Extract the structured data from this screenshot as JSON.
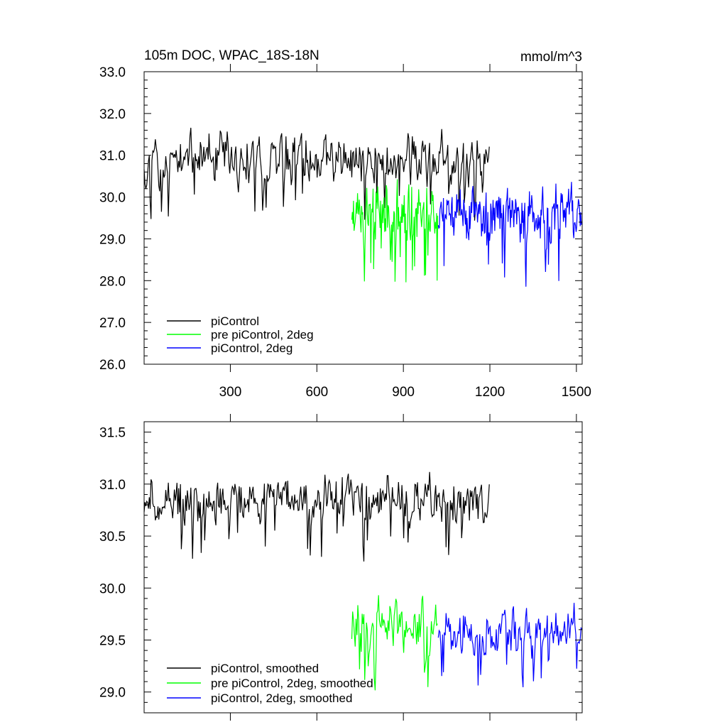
{
  "chart_data": [
    {
      "type": "line",
      "title_left": "105m DOC, WPAC_18S-18N",
      "title_right": "mmol/m^3",
      "xlabel": "",
      "ylabel": "",
      "xlim": [
        1,
        1520
      ],
      "ylim": [
        26.0,
        33.0
      ],
      "xticks": [
        300,
        600,
        900,
        1200,
        1500
      ],
      "xtick_labels": [
        "300",
        "600",
        "900",
        "1200",
        "1500"
      ],
      "yticks": [
        26.0,
        27.0,
        28.0,
        29.0,
        30.0,
        31.0,
        32.0,
        33.0
      ],
      "ytick_labels": [
        "26.0",
        "27.0",
        "28.0",
        "29.0",
        "30.0",
        "31.0",
        "32.0",
        "33.0"
      ],
      "legend_position": "bottom-left",
      "series": [
        {
          "name": "piControl",
          "color": "#000000",
          "x_range": [
            1,
            1200
          ],
          "step": 3,
          "mean": 30.85,
          "amp": 1.05,
          "min": 28.6,
          "max": 32.3,
          "seed": 11
        },
        {
          "name": "pre piControl, 2deg",
          "color": "#00ff00",
          "x_range": [
            721,
            1020
          ],
          "step": 2,
          "mean": 29.7,
          "amp": 1.25,
          "min": 26.8,
          "max": 31.2,
          "seed": 23
        },
        {
          "name": "piControl, 2deg",
          "color": "#0000ff",
          "x_range": [
            1021,
            1520
          ],
          "step": 2,
          "mean": 29.6,
          "amp": 1.1,
          "min": 27.1,
          "max": 31.1,
          "seed": 37
        }
      ]
    },
    {
      "type": "line",
      "xlabel": "",
      "ylabel": "",
      "xlim": [
        1,
        1520
      ],
      "ylim": [
        28.8,
        31.6
      ],
      "xticks": [
        300,
        600,
        900,
        1200,
        1500
      ],
      "yticks": [
        29.0,
        29.5,
        30.0,
        30.5,
        31.0,
        31.5
      ],
      "ytick_labels": [
        "29.0",
        "29.5",
        "30.0",
        "30.5",
        "31.0",
        "31.5"
      ],
      "legend_position": "bottom-left",
      "series": [
        {
          "name": "piControl, smoothed",
          "color": "#000000",
          "x_range": [
            1,
            1200
          ],
          "step": 3,
          "mean": 30.85,
          "amp": 0.4,
          "min": 30.0,
          "max": 31.45,
          "seed": 51
        },
        {
          "name": "pre piControl, 2deg, smoothed",
          "color": "#00ff00",
          "x_range": [
            721,
            1020
          ],
          "step": 3,
          "mean": 29.65,
          "amp": 0.45,
          "min": 28.85,
          "max": 30.15,
          "seed": 63
        },
        {
          "name": "piControl, 2deg, smoothed",
          "color": "#0000ff",
          "x_range": [
            1021,
            1520
          ],
          "step": 3,
          "mean": 29.6,
          "amp": 0.4,
          "min": 28.85,
          "max": 30.2,
          "seed": 79
        }
      ]
    }
  ]
}
